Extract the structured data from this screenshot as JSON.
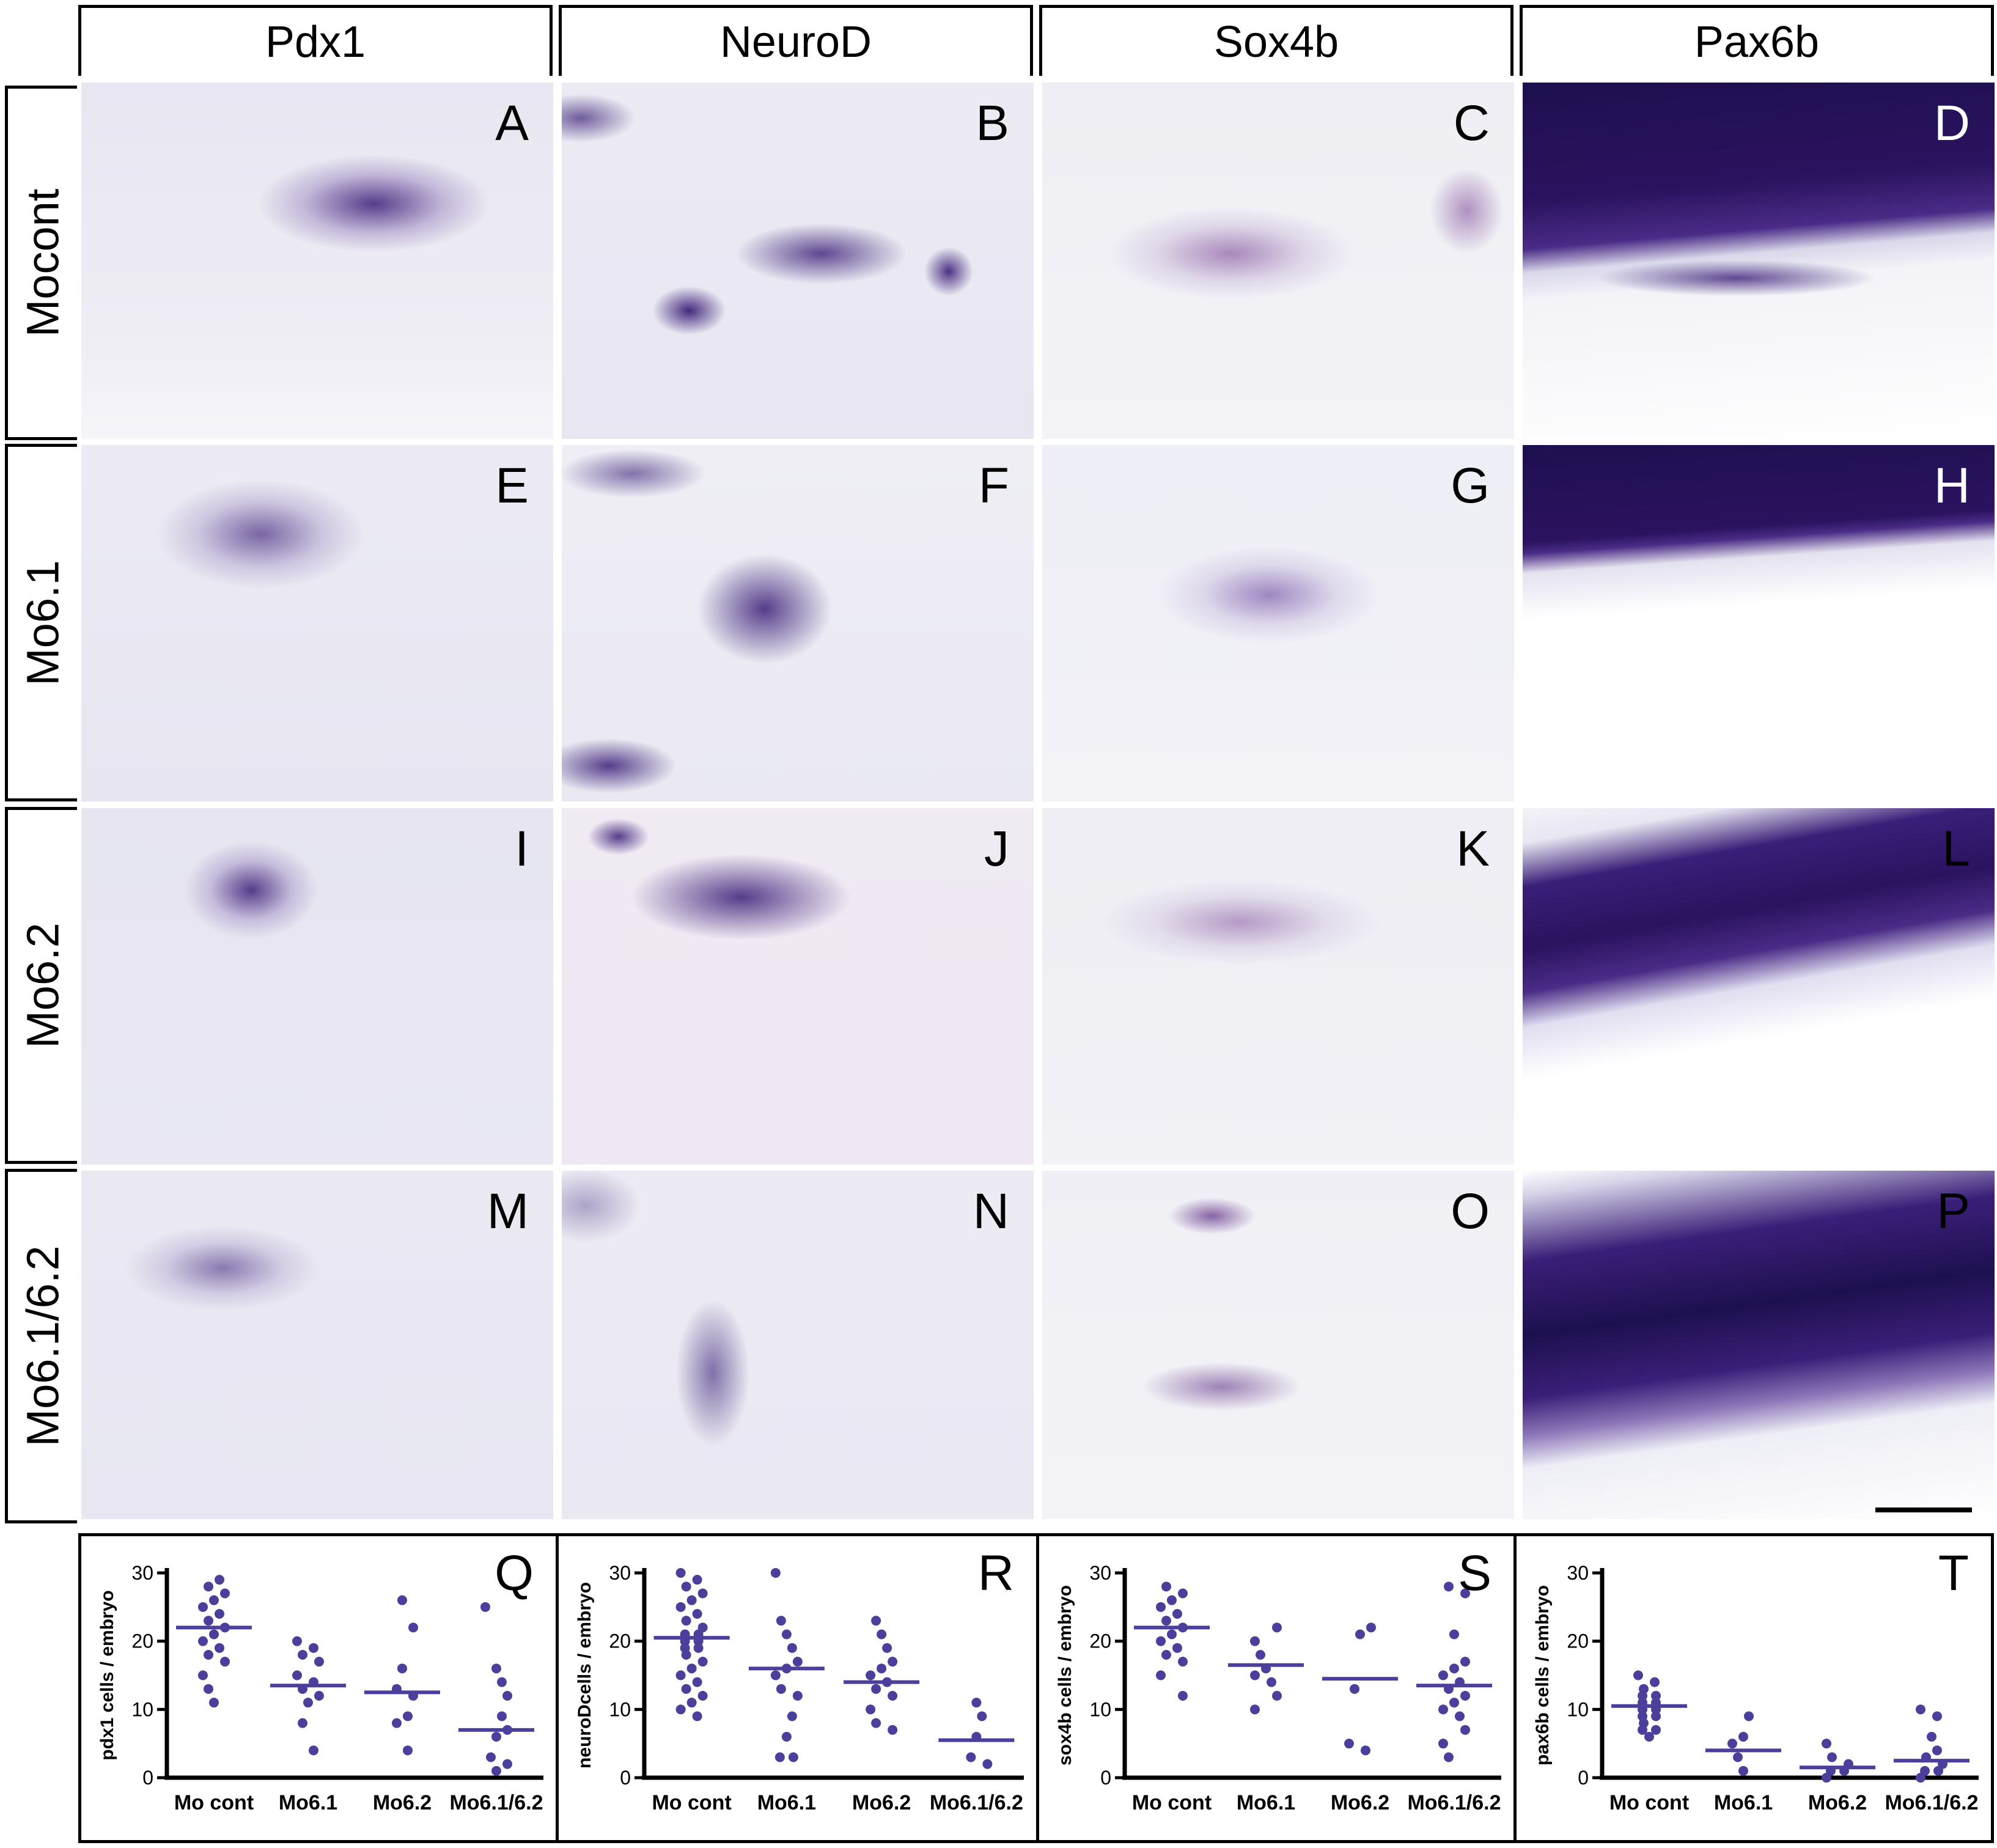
{
  "columns": [
    "Pdx1",
    "NeuroD",
    "Sox4b",
    "Pax6b"
  ],
  "rows": [
    "Mocont",
    "Mo6.1",
    "Mo6.2",
    "Mo6.1/6.2"
  ],
  "panels": [
    [
      "A",
      "B",
      "C",
      "D"
    ],
    [
      "E",
      "F",
      "G",
      "H"
    ],
    [
      "I",
      "J",
      "K",
      "L"
    ],
    [
      "M",
      "N",
      "O",
      "P"
    ]
  ],
  "stain_color": "#3a1f78",
  "chart_data": [
    {
      "type": "scatter",
      "panel": "Q",
      "ylabel": "pdx1 cells / embryo",
      "categories": [
        "Mo cont",
        "Mo6.1",
        "Mo6.2",
        "Mo6.1/6.2"
      ],
      "ylim": [
        0,
        30
      ],
      "yticks": [
        0,
        10,
        20,
        30
      ],
      "means": [
        22,
        13.5,
        12.5,
        7
      ],
      "points": [
        [
          29,
          28,
          27,
          26,
          25,
          24,
          23,
          22,
          21,
          20,
          19,
          18,
          17,
          15,
          13,
          11
        ],
        [
          20,
          19,
          18,
          17,
          15,
          14,
          13,
          12,
          11,
          8,
          4
        ],
        [
          26,
          22,
          16,
          13,
          12,
          9,
          8,
          4
        ],
        [
          25,
          16,
          14,
          12,
          9,
          7,
          6,
          3,
          2,
          1
        ]
      ]
    },
    {
      "type": "scatter",
      "panel": "R",
      "ylabel": "neuroDcells / embryo",
      "categories": [
        "Mo cont",
        "Mo6.1",
        "Mo6.2",
        "Mo6.1/6.2"
      ],
      "ylim": [
        0,
        30
      ],
      "yticks": [
        0,
        10,
        20,
        30
      ],
      "means": [
        20.5,
        16,
        14,
        5.5
      ],
      "points": [
        [
          30,
          29,
          28,
          27,
          26,
          25,
          24,
          23,
          22,
          21,
          21,
          20,
          20,
          19,
          19,
          18,
          17,
          16,
          15,
          14,
          13,
          12,
          11,
          10,
          9
        ],
        [
          30,
          23,
          21,
          19,
          17,
          16,
          15,
          13,
          12,
          9,
          6,
          3,
          3
        ],
        [
          23,
          21,
          19,
          17,
          16,
          15,
          14,
          13,
          12,
          10,
          8,
          7
        ],
        [
          11,
          9,
          6,
          3,
          2
        ]
      ]
    },
    {
      "type": "scatter",
      "panel": "S",
      "ylabel": "sox4b cells / embryo",
      "categories": [
        "Mo cont",
        "Mo6.1",
        "Mo6.2",
        "Mo6.1/6.2"
      ],
      "ylim": [
        0,
        30
      ],
      "yticks": [
        0,
        10,
        20,
        30
      ],
      "means": [
        22,
        16.5,
        14.5,
        13.5
      ],
      "points": [
        [
          28,
          27,
          26,
          25,
          24,
          23,
          22,
          21,
          20,
          19,
          18,
          17,
          15,
          12
        ],
        [
          22,
          20,
          18,
          16,
          15,
          14,
          12,
          10
        ],
        [
          22,
          21,
          13,
          5,
          4
        ],
        [
          28,
          27,
          21,
          17,
          16,
          15,
          14,
          13,
          12,
          11,
          10,
          9,
          7,
          5,
          3
        ]
      ]
    },
    {
      "type": "scatter",
      "panel": "T",
      "ylabel": "pax6b cells / embryo",
      "categories": [
        "Mo cont",
        "Mo6.1",
        "Mo6.2",
        "Mo6.1/6.2"
      ],
      "ylim": [
        0,
        30
      ],
      "yticks": [
        0,
        10,
        20,
        30
      ],
      "means": [
        10.5,
        4,
        1.5,
        2.5
      ],
      "points": [
        [
          15,
          14,
          13,
          12,
          12,
          11,
          11,
          10,
          10,
          9,
          9,
          8,
          7,
          7,
          6
        ],
        [
          9,
          6,
          5,
          3,
          1
        ],
        [
          5,
          3,
          2,
          1,
          1,
          0
        ],
        [
          10,
          9,
          6,
          4,
          3,
          2,
          1,
          1,
          0
        ]
      ]
    }
  ]
}
